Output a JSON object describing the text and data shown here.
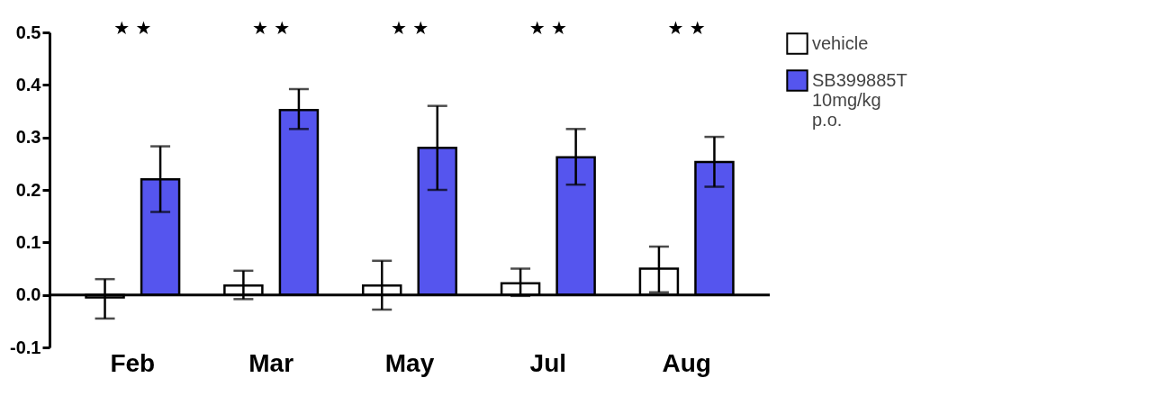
{
  "chart_data": {
    "type": "bar",
    "categories": [
      "Feb",
      "Mar",
      "May",
      "Jul",
      "Aug"
    ],
    "series": [
      {
        "name": "vehicle",
        "color": "#ffffff",
        "values": [
          -0.005,
          0.018,
          0.018,
          0.022,
          0.05
        ],
        "errors": [
          [
            -0.045,
            0.03
          ],
          [
            -0.008,
            0.046
          ],
          [
            -0.028,
            0.065
          ],
          [
            -0.002,
            0.05
          ],
          [
            0.005,
            0.092
          ]
        ]
      },
      {
        "name": "SB399885T 10mg/kg p.o.",
        "color": "#5555ee",
        "values": [
          0.22,
          0.352,
          0.28,
          0.262,
          0.253
        ],
        "errors": [
          [
            0.158,
            0.283
          ],
          [
            0.316,
            0.392
          ],
          [
            0.2,
            0.36
          ],
          [
            0.21,
            0.316
          ],
          [
            0.206,
            0.301
          ]
        ]
      }
    ],
    "ylim": [
      -0.1,
      0.5
    ],
    "yticks": [
      {
        "value": -0.1,
        "label": "-0.1"
      },
      {
        "value": 0,
        "label": "0.0"
      },
      {
        "value": 0.1,
        "label": "0.1"
      },
      {
        "value": 0.2,
        "label": "0.2"
      },
      {
        "value": 0.3,
        "label": "0.3"
      },
      {
        "value": 0.4,
        "label": "0.4"
      },
      {
        "value": 0.5,
        "label": "0.5"
      }
    ],
    "grid": false,
    "legend": "top right",
    "annotations": [
      "★ ★",
      "★ ★",
      "★ ★",
      "★ ★",
      "★ ★"
    ]
  }
}
